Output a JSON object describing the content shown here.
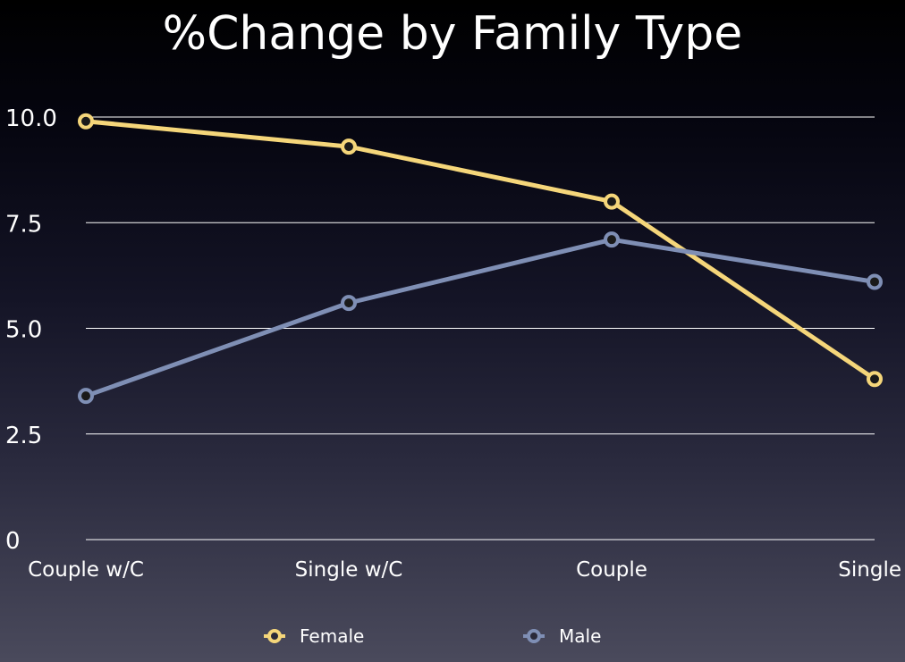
{
  "title": "%Change by Family Type",
  "chart_data": {
    "type": "line",
    "title": "%Change by Family Type",
    "categories": [
      "Couple w/C",
      "Single w/C",
      "Couple",
      "Single"
    ],
    "series": [
      {
        "name": "Female",
        "color": "#f5d67a",
        "values": [
          9.9,
          9.3,
          8.0,
          3.8
        ]
      },
      {
        "name": "Male",
        "color": "#7f8fb5",
        "values": [
          3.4,
          5.6,
          7.1,
          6.1
        ]
      }
    ],
    "y_ticks": [
      "0",
      "2.5",
      "5.0",
      "7.5",
      "10.0"
    ],
    "y_tick_values": [
      0,
      2.5,
      5.0,
      7.5,
      10.0
    ],
    "ylim": [
      0,
      10
    ],
    "grid": true,
    "legend_position": "bottom"
  }
}
